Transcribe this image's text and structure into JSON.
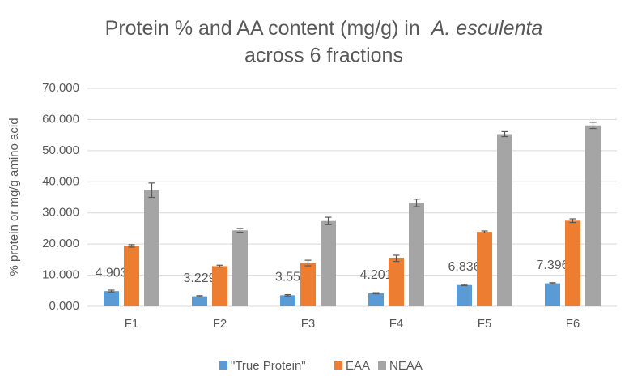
{
  "chart_data": {
    "type": "bar",
    "title": [
      "Protein % and AA content (mg/g) in",
      "A. esculenta",
      "across 6 fractions"
    ],
    "y_label": "% protein or mg/g amino acid",
    "categories": [
      "F1",
      "F2",
      "F3",
      "F4",
      "F5",
      "F6"
    ],
    "series": [
      {
        "name": "\"True Protein\"",
        "color": "#5b9bd5",
        "values": [
          4.903,
          3.229,
          3.55,
          4.201,
          6.836,
          7.396
        ],
        "errors": [
          0.3,
          0.2,
          0.2,
          0.2,
          0.2,
          0.2
        ],
        "show_labels": true
      },
      {
        "name": "EAA",
        "color": "#ed7d31",
        "values": [
          19.4,
          12.9,
          13.9,
          15.4,
          23.9,
          27.5
        ],
        "errors": [
          0.4,
          0.3,
          0.9,
          1.0,
          0.3,
          0.6
        ],
        "show_labels": false
      },
      {
        "name": "NEAA",
        "color": "#a5a5a5",
        "values": [
          37.3,
          24.4,
          27.4,
          33.2,
          55.3,
          58.1
        ],
        "errors": [
          2.3,
          0.6,
          1.2,
          1.2,
          0.8,
          1.0
        ],
        "show_labels": false
      }
    ],
    "ylim": [
      0,
      70
    ],
    "yticks": [
      {
        "value": 0,
        "label": "0.000"
      },
      {
        "value": 10,
        "label": "10.000"
      },
      {
        "value": 20,
        "label": "20.000"
      },
      {
        "value": 30,
        "label": "30.000"
      },
      {
        "value": 40,
        "label": "40.000"
      },
      {
        "value": 50,
        "label": "50.000"
      },
      {
        "value": 60,
        "label": "60.000"
      },
      {
        "value": 70,
        "label": "70.000"
      }
    ],
    "grid": true,
    "legend": "bottom"
  }
}
